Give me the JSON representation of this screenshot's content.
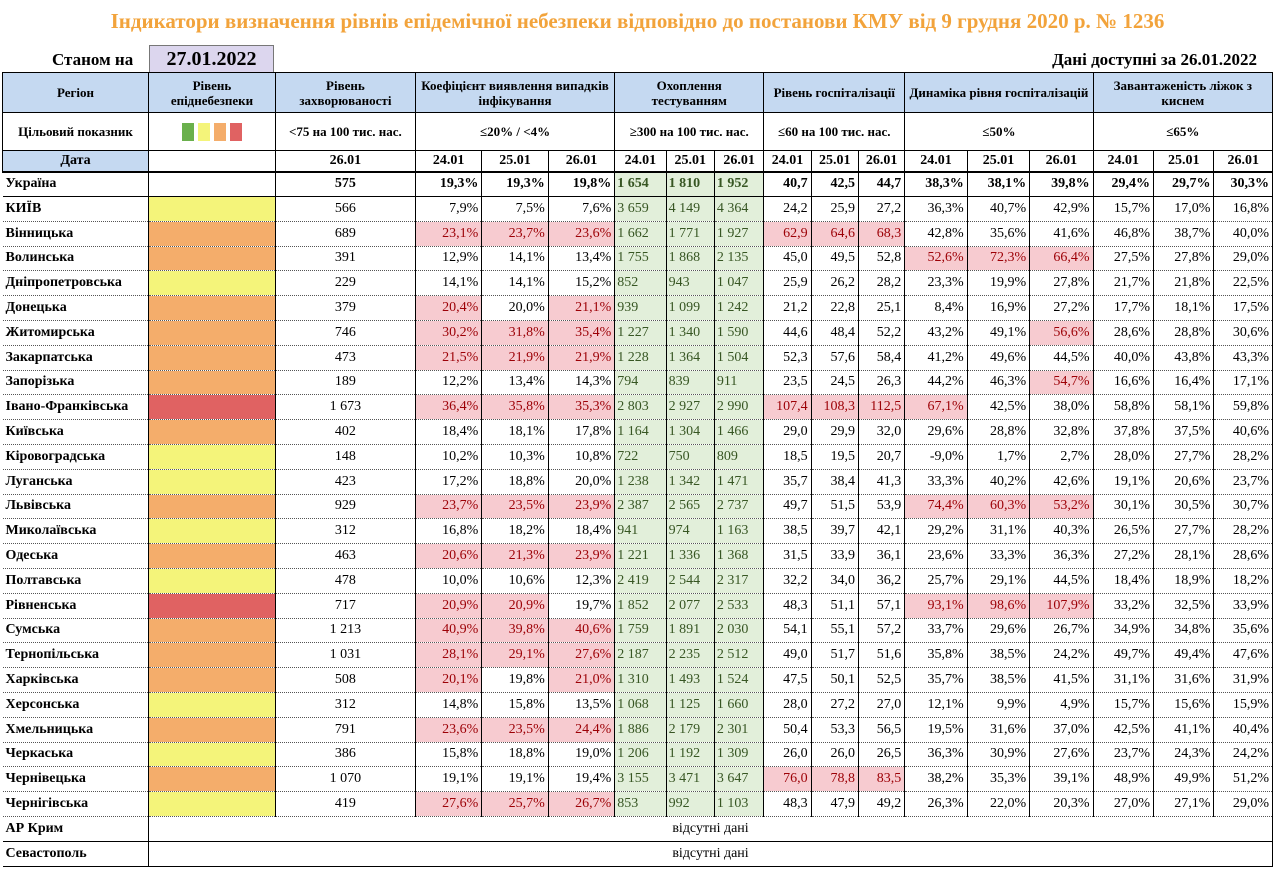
{
  "title": "Індикатори визначення рівнів епідемічної небезпеки відповідно до постанови КМУ від 9 грудня 2020 р. № 1236",
  "as_of_label": "Станом на",
  "as_of_date": "27.01.2022",
  "data_available": "Дані доступні за  26.01.2022",
  "headers": {
    "region": "Регіон",
    "level": "Рівень епіднебезпеки",
    "incidence": "Рівень захворюваності",
    "detection": "Коефіцієнт виявлення випадків інфікування",
    "testing": "Охоплення тестуванням",
    "hosp": "Рівень госпіталізації",
    "hosp_dyn": "Динаміка рівня госпіталізацій",
    "oxygen": "Завантаженість ліжок з киснем"
  },
  "targets": {
    "label": "Цільовий показник",
    "incidence": "<75 на 100 тис. нас.",
    "detection": "≤20% / <4%",
    "testing": "≥300 на 100 тис. нас.",
    "hosp": "≤60 на 100 тис. нас.",
    "hosp_dyn": "≤50%",
    "oxygen": "≤65%"
  },
  "colors": {
    "green": "#6ab04c",
    "yellow": "#f4f47a",
    "orange": "#f4ad6b",
    "red": "#e06262"
  },
  "date_label": "Дата",
  "dates": {
    "incidence": "26.01",
    "three": [
      "24.01",
      "25.01",
      "26.01"
    ]
  },
  "ukraine": {
    "name": "Україна",
    "inc": "575",
    "det": [
      "19,3%",
      "19,3%",
      "19,8%"
    ],
    "test": [
      "1 654",
      "1 810",
      "1 952"
    ],
    "hosp": [
      "40,7",
      "42,5",
      "44,7"
    ],
    "dyn": [
      "38,3%",
      "38,1%",
      "39,8%"
    ],
    "oxy": [
      "29,4%",
      "29,7%",
      "30,3%"
    ]
  },
  "rows": [
    {
      "name": "КИЇВ",
      "level": "yellow",
      "inc": "566",
      "det": [
        "7,9%",
        "7,5%",
        "7,6%"
      ],
      "test": [
        "3 659",
        "4 149",
        "4 364"
      ],
      "hosp": [
        "24,2",
        "25,9",
        "27,2"
      ],
      "dyn": [
        "36,3%",
        "40,7%",
        "42,9%"
      ],
      "oxy": [
        "15,7%",
        "17,0%",
        "16,8%"
      ]
    },
    {
      "name": "Вінницька",
      "level": "orange",
      "inc": "689",
      "det": [
        "23,1%",
        "23,7%",
        "23,6%"
      ],
      "test": [
        "1 662",
        "1 771",
        "1 927"
      ],
      "hosp": [
        "62,9",
        "64,6",
        "68,3"
      ],
      "dyn": [
        "42,8%",
        "35,6%",
        "41,6%"
      ],
      "oxy": [
        "46,8%",
        "38,7%",
        "40,0%"
      ]
    },
    {
      "name": "Волинська",
      "level": "orange",
      "inc": "391",
      "det": [
        "12,9%",
        "14,1%",
        "13,4%"
      ],
      "test": [
        "1 755",
        "1 868",
        "2 135"
      ],
      "hosp": [
        "45,0",
        "49,5",
        "52,8"
      ],
      "dyn": [
        "52,6%",
        "72,3%",
        "66,4%"
      ],
      "oxy": [
        "27,5%",
        "27,8%",
        "29,0%"
      ]
    },
    {
      "name": "Дніпропетровська",
      "level": "yellow",
      "inc": "229",
      "det": [
        "14,1%",
        "14,1%",
        "15,2%"
      ],
      "test": [
        "852",
        "943",
        "1 047"
      ],
      "hosp": [
        "25,9",
        "26,2",
        "28,2"
      ],
      "dyn": [
        "23,3%",
        "19,9%",
        "27,8%"
      ],
      "oxy": [
        "21,7%",
        "21,8%",
        "22,5%"
      ]
    },
    {
      "name": "Донецька",
      "level": "orange",
      "inc": "379",
      "det": [
        "20,4%",
        "20,0%",
        "21,1%"
      ],
      "test": [
        "939",
        "1 099",
        "1 242"
      ],
      "hosp": [
        "21,2",
        "22,8",
        "25,1"
      ],
      "dyn": [
        "8,4%",
        "16,9%",
        "27,2%"
      ],
      "oxy": [
        "17,7%",
        "18,1%",
        "17,5%"
      ]
    },
    {
      "name": "Житомирська",
      "level": "orange",
      "inc": "746",
      "det": [
        "30,2%",
        "31,8%",
        "35,4%"
      ],
      "test": [
        "1 227",
        "1 340",
        "1 590"
      ],
      "hosp": [
        "44,6",
        "48,4",
        "52,2"
      ],
      "dyn": [
        "43,2%",
        "49,1%",
        "56,6%"
      ],
      "oxy": [
        "28,6%",
        "28,8%",
        "30,6%"
      ]
    },
    {
      "name": "Закарпатська",
      "level": "orange",
      "inc": "473",
      "det": [
        "21,5%",
        "21,9%",
        "21,9%"
      ],
      "test": [
        "1 228",
        "1 364",
        "1 504"
      ],
      "hosp": [
        "52,3",
        "57,6",
        "58,4"
      ],
      "dyn": [
        "41,2%",
        "49,6%",
        "44,5%"
      ],
      "oxy": [
        "40,0%",
        "43,8%",
        "43,3%"
      ]
    },
    {
      "name": "Запорізька",
      "level": "orange",
      "inc": "189",
      "det": [
        "12,2%",
        "13,4%",
        "14,3%"
      ],
      "test": [
        "794",
        "839",
        "911"
      ],
      "hosp": [
        "23,5",
        "24,5",
        "26,3"
      ],
      "dyn": [
        "44,2%",
        "46,3%",
        "54,7%"
      ],
      "oxy": [
        "16,6%",
        "16,4%",
        "17,1%"
      ]
    },
    {
      "name": "Івано-Франківська",
      "level": "red",
      "inc": "1 673",
      "det": [
        "36,4%",
        "35,8%",
        "35,3%"
      ],
      "test": [
        "2 803",
        "2 927",
        "2 990"
      ],
      "hosp": [
        "107,4",
        "108,3",
        "112,5"
      ],
      "dyn": [
        "67,1%",
        "42,5%",
        "38,0%"
      ],
      "oxy": [
        "58,8%",
        "58,1%",
        "59,8%"
      ]
    },
    {
      "name": "Київська",
      "level": "orange",
      "inc": "402",
      "det": [
        "18,4%",
        "18,1%",
        "17,8%"
      ],
      "test": [
        "1 164",
        "1 304",
        "1 466"
      ],
      "hosp": [
        "29,0",
        "29,9",
        "32,0"
      ],
      "dyn": [
        "29,6%",
        "28,8%",
        "32,8%"
      ],
      "oxy": [
        "37,8%",
        "37,5%",
        "40,6%"
      ]
    },
    {
      "name": "Кіровоградська",
      "level": "yellow",
      "inc": "148",
      "det": [
        "10,2%",
        "10,3%",
        "10,8%"
      ],
      "test": [
        "722",
        "750",
        "809"
      ],
      "hosp": [
        "18,5",
        "19,5",
        "20,7"
      ],
      "dyn": [
        "-9,0%",
        "1,7%",
        "2,7%"
      ],
      "oxy": [
        "28,0%",
        "27,7%",
        "28,2%"
      ]
    },
    {
      "name": "Луганська",
      "level": "yellow",
      "inc": "423",
      "det": [
        "17,2%",
        "18,8%",
        "20,0%"
      ],
      "test": [
        "1 238",
        "1 342",
        "1 471"
      ],
      "hosp": [
        "35,7",
        "38,4",
        "41,3"
      ],
      "dyn": [
        "33,3%",
        "40,2%",
        "42,6%"
      ],
      "oxy": [
        "19,1%",
        "20,6%",
        "23,7%"
      ]
    },
    {
      "name": "Львівська",
      "level": "orange",
      "inc": "929",
      "det": [
        "23,7%",
        "23,5%",
        "23,9%"
      ],
      "test": [
        "2 387",
        "2 565",
        "2 737"
      ],
      "hosp": [
        "49,7",
        "51,5",
        "53,9"
      ],
      "dyn": [
        "74,4%",
        "60,3%",
        "53,2%"
      ],
      "oxy": [
        "30,1%",
        "30,5%",
        "30,7%"
      ]
    },
    {
      "name": "Миколаївська",
      "level": "yellow",
      "inc": "312",
      "det": [
        "16,8%",
        "18,2%",
        "18,4%"
      ],
      "test": [
        "941",
        "974",
        "1 163"
      ],
      "hosp": [
        "38,5",
        "39,7",
        "42,1"
      ],
      "dyn": [
        "29,2%",
        "31,1%",
        "40,3%"
      ],
      "oxy": [
        "26,5%",
        "27,7%",
        "28,2%"
      ]
    },
    {
      "name": "Одеська",
      "level": "orange",
      "inc": "463",
      "det": [
        "20,6%",
        "21,3%",
        "23,9%"
      ],
      "test": [
        "1 221",
        "1 336",
        "1 368"
      ],
      "hosp": [
        "31,5",
        "33,9",
        "36,1"
      ],
      "dyn": [
        "23,6%",
        "33,3%",
        "36,3%"
      ],
      "oxy": [
        "27,2%",
        "28,1%",
        "28,6%"
      ]
    },
    {
      "name": "Полтавська",
      "level": "yellow",
      "inc": "478",
      "det": [
        "10,0%",
        "10,6%",
        "12,3%"
      ],
      "test": [
        "2 419",
        "2 544",
        "2 317"
      ],
      "hosp": [
        "32,2",
        "34,0",
        "36,2"
      ],
      "dyn": [
        "25,7%",
        "29,1%",
        "44,5%"
      ],
      "oxy": [
        "18,4%",
        "18,9%",
        "18,2%"
      ]
    },
    {
      "name": "Рівненська",
      "level": "red",
      "inc": "717",
      "det": [
        "20,9%",
        "20,9%",
        "19,7%"
      ],
      "test": [
        "1 852",
        "2 077",
        "2 533"
      ],
      "hosp": [
        "48,3",
        "51,1",
        "57,1"
      ],
      "dyn": [
        "93,1%",
        "98,6%",
        "107,9%"
      ],
      "oxy": [
        "33,2%",
        "32,5%",
        "33,9%"
      ]
    },
    {
      "name": "Сумська",
      "level": "orange",
      "inc": "1 213",
      "det": [
        "40,9%",
        "39,8%",
        "40,6%"
      ],
      "test": [
        "1 759",
        "1 891",
        "2 030"
      ],
      "hosp": [
        "54,1",
        "55,1",
        "57,2"
      ],
      "dyn": [
        "33,7%",
        "29,6%",
        "26,7%"
      ],
      "oxy": [
        "34,9%",
        "34,8%",
        "35,6%"
      ]
    },
    {
      "name": "Тернопільська",
      "level": "orange",
      "inc": "1 031",
      "det": [
        "28,1%",
        "29,1%",
        "27,6%"
      ],
      "test": [
        "2 187",
        "2 235",
        "2 512"
      ],
      "hosp": [
        "49,0",
        "51,7",
        "51,6"
      ],
      "dyn": [
        "35,8%",
        "38,5%",
        "24,2%"
      ],
      "oxy": [
        "49,7%",
        "49,4%",
        "47,6%"
      ]
    },
    {
      "name": "Харківська",
      "level": "orange",
      "inc": "508",
      "det": [
        "20,1%",
        "19,8%",
        "21,0%"
      ],
      "test": [
        "1 310",
        "1 493",
        "1 524"
      ],
      "hosp": [
        "47,5",
        "50,1",
        "52,5"
      ],
      "dyn": [
        "35,7%",
        "38,5%",
        "41,5%"
      ],
      "oxy": [
        "31,1%",
        "31,6%",
        "31,9%"
      ]
    },
    {
      "name": "Херсонська",
      "level": "yellow",
      "inc": "312",
      "det": [
        "14,8%",
        "15,8%",
        "13,5%"
      ],
      "test": [
        "1 068",
        "1 125",
        "1 660"
      ],
      "hosp": [
        "28,0",
        "27,2",
        "27,0"
      ],
      "dyn": [
        "12,1%",
        "9,9%",
        "4,9%"
      ],
      "oxy": [
        "15,7%",
        "15,6%",
        "15,9%"
      ]
    },
    {
      "name": "Хмельницька",
      "level": "orange",
      "inc": "791",
      "det": [
        "23,6%",
        "23,5%",
        "24,4%"
      ],
      "test": [
        "1 886",
        "2 179",
        "2 301"
      ],
      "hosp": [
        "50,4",
        "53,3",
        "56,5"
      ],
      "dyn": [
        "19,5%",
        "31,6%",
        "37,0%"
      ],
      "oxy": [
        "42,5%",
        "41,1%",
        "40,4%"
      ]
    },
    {
      "name": "Черкаська",
      "level": "yellow",
      "inc": "386",
      "det": [
        "15,8%",
        "18,8%",
        "19,0%"
      ],
      "test": [
        "1 206",
        "1 192",
        "1 309"
      ],
      "hosp": [
        "26,0",
        "26,0",
        "26,5"
      ],
      "dyn": [
        "36,3%",
        "30,9%",
        "27,6%"
      ],
      "oxy": [
        "23,7%",
        "24,3%",
        "24,2%"
      ]
    },
    {
      "name": "Чернівецька",
      "level": "orange",
      "inc": "1 070",
      "det": [
        "19,1%",
        "19,1%",
        "19,4%"
      ],
      "test": [
        "3 155",
        "3 471",
        "3 647"
      ],
      "hosp": [
        "76,0",
        "78,8",
        "83,5"
      ],
      "dyn": [
        "38,2%",
        "35,3%",
        "39,1%"
      ],
      "oxy": [
        "48,9%",
        "49,9%",
        "51,2%"
      ]
    },
    {
      "name": "Чернігівська",
      "level": "yellow",
      "inc": "419",
      "det": [
        "27,6%",
        "25,7%",
        "26,7%"
      ],
      "test": [
        "853",
        "992",
        "1 103"
      ],
      "hosp": [
        "48,3",
        "47,9",
        "49,2"
      ],
      "dyn": [
        "26,3%",
        "22,0%",
        "20,3%"
      ],
      "oxy": [
        "27,0%",
        "27,1%",
        "29,0%"
      ]
    }
  ],
  "no_data_rows": [
    {
      "name": "АР Крим",
      "text": "відсутні дані"
    },
    {
      "name": "Севастополь",
      "text": "відсутні дані"
    }
  ]
}
